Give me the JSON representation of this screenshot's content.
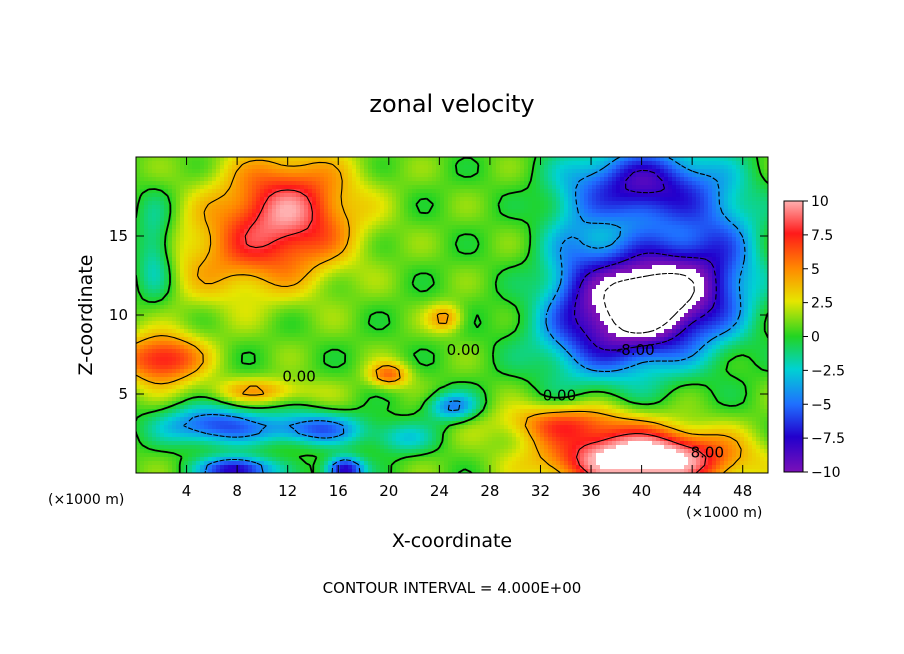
{
  "chart_data": {
    "type": "heatmap",
    "title": "zonal velocity",
    "xlabel": "X-coordinate",
    "ylabel": "Z-coordinate",
    "x_unit_left": "(×1000 m)",
    "x_unit_right": "(×1000 m)",
    "footer": "CONTOUR INTERVAL = 4.000E+00",
    "xlim": [
      0,
      50
    ],
    "ylim": [
      0,
      20
    ],
    "x_ticks": [
      4,
      8,
      12,
      16,
      20,
      24,
      28,
      32,
      36,
      40,
      44,
      48
    ],
    "x_tick_labels": [
      "4",
      "8",
      "12",
      "16",
      "20",
      "24",
      "28",
      "32",
      "36",
      "40",
      "44",
      "48"
    ],
    "y_ticks": [
      5,
      10,
      15
    ],
    "y_tick_labels": [
      "5",
      "10",
      "15"
    ],
    "colorbar": {
      "ticks": [
        10,
        7.5,
        5,
        2.5,
        0,
        -2.5,
        -5,
        -7.5,
        -10
      ],
      "tick_labels": [
        "10",
        "7.5",
        "5",
        "2.5",
        "0",
        "−2.5",
        "−5",
        "−7.5",
        "−10"
      ],
      "range": [
        -10,
        10
      ]
    },
    "contour_labels": [
      {
        "text": "0.00",
        "x": 25.9,
        "y": 7.8
      },
      {
        "text": "0.00",
        "x": 12.9,
        "y": 6.1
      },
      {
        "text": "0.00",
        "x": 33.5,
        "y": 4.9
      },
      {
        "text": "-8.00",
        "x": 39.5,
        "y": 7.8
      },
      {
        "text": "8.00",
        "x": 45.2,
        "y": 1.3
      }
    ],
    "features": [
      {
        "kind": "max",
        "value": 8.5,
        "x": 12,
        "y": 16
      },
      {
        "kind": "max",
        "value": 8,
        "x": 2,
        "y": 7
      },
      {
        "kind": "max",
        "value": 12,
        "x": 40,
        "y": 1
      },
      {
        "kind": "min",
        "value": -12,
        "x": 40,
        "y": 11
      },
      {
        "kind": "min",
        "value": -9,
        "x": 40,
        "y": 18
      }
    ]
  }
}
